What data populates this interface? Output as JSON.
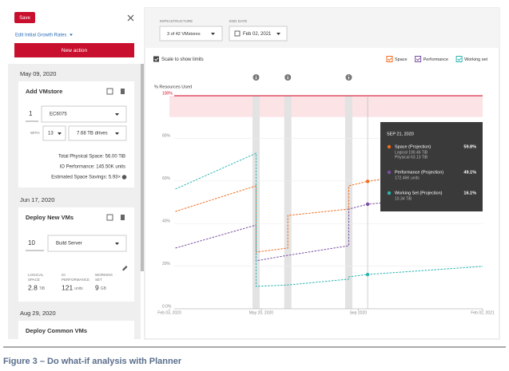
{
  "panel": {
    "save": "Save",
    "edit_link": "Edit Initial Growth Rates",
    "new_action": "New action",
    "actions": [
      {
        "date": "May 09, 2020",
        "title": "Add VMstore",
        "count": "1",
        "model": "EC6075",
        "with": "WITH",
        "drives_count": "13",
        "drives": "7.68 TB drives",
        "stats": [
          "Total Physical Space: 56.00 TiB",
          "IO Performance: 145.50K units",
          "Estimated Space Savings: 5.93×"
        ]
      },
      {
        "date": "Jun 17, 2020",
        "title": "Deploy New VMs",
        "count": "10",
        "template": "Build Server",
        "metrics": [
          {
            "label": [
              "LOGICAL",
              "SPACE"
            ],
            "value": "2.8",
            "unit": "TiB"
          },
          {
            "label": [
              "IO",
              "PERFORMANCE"
            ],
            "value": "121",
            "unit": "units"
          },
          {
            "label": [
              "WORKING",
              "SET"
            ],
            "value": "9",
            "unit": "GB"
          }
        ]
      },
      {
        "date": "Aug 29, 2020",
        "title": "Deploy Common VMs"
      }
    ]
  },
  "controls": {
    "infrastructure_label": "INFRASTRUCTURE",
    "infrastructure": "3 of 42 VMstores",
    "end_date_label": "END DATE",
    "end_date": "Feb 02, 2021",
    "scale_checkbox": "Scale to show limits"
  },
  "caption": "Figure 3 – Do what-if analysis with Planner",
  "chart_data": {
    "type": "line",
    "y_label": "% Resources Used",
    "x": [
      "2020-02-10",
      "2020-05-14",
      "2020-05-14",
      "2020-06-20",
      "2020-06-20",
      "2020-08-30",
      "2020-08-30",
      "2020-09-21",
      "2021-02-02"
    ],
    "series": [
      {
        "name": "Space",
        "color": "#f26b1d",
        "values": [
          45.7,
          57.7,
          26.6,
          28.5,
          43.8,
          46.8,
          57.7,
          59.8,
          68
        ]
      },
      {
        "name": "Performance",
        "color": "#7a4fa3",
        "values": [
          28.5,
          39.3,
          22.5,
          25.1,
          25.1,
          29.6,
          46.8,
          49.1,
          54
        ]
      },
      {
        "name": "Working set",
        "color": "#2bb5b0",
        "values": [
          56.2,
          73,
          10.5,
          11.2,
          11.2,
          13.9,
          15,
          16.1,
          19.9
        ]
      }
    ],
    "xlim": [
      "2020-02-03",
      "2021-02-02"
    ],
    "xticks": [
      {
        "value": "2020-02-03",
        "label": "Feb 03, 2020"
      },
      {
        "value": "2020-05-20",
        "label": "May 20, 2020"
      },
      {
        "value": "2020-09-10",
        "label": "Sep 2020"
      },
      {
        "value": "2021-02-02",
        "label": "Feb 02, 2021"
      }
    ],
    "ylim": [
      0,
      100
    ],
    "yticks": [
      {
        "value": 0,
        "label": "0.0%"
      },
      {
        "value": 20,
        "label": "20%"
      },
      {
        "value": 40,
        "label": "40%"
      },
      {
        "value": 60,
        "label": "60%"
      },
      {
        "value": 80,
        "label": "80%"
      },
      {
        "value": 100,
        "label": "100%"
      }
    ],
    "grid": true,
    "limit_color": "#d0021b",
    "limit_band": [
      90,
      100
    ],
    "event_dates": [
      "2020-05-14",
      "2020-06-20",
      "2020-08-30"
    ],
    "tooltip": {
      "date": "2020-09-21",
      "title": "SEP 21, 2020",
      "rows": [
        {
          "name": "Space (Projection)",
          "value": "59.8%",
          "details": [
            "Logical 190.46 TiB",
            "Physical 63.13 TiB"
          ]
        },
        {
          "name": "Performance (Projection)",
          "value": "49.1%",
          "details": [
            "172.46K units"
          ]
        },
        {
          "name": "Working Set (Projection)",
          "value": "16.1%",
          "details": [
            "10.34 TiB"
          ]
        }
      ]
    }
  }
}
